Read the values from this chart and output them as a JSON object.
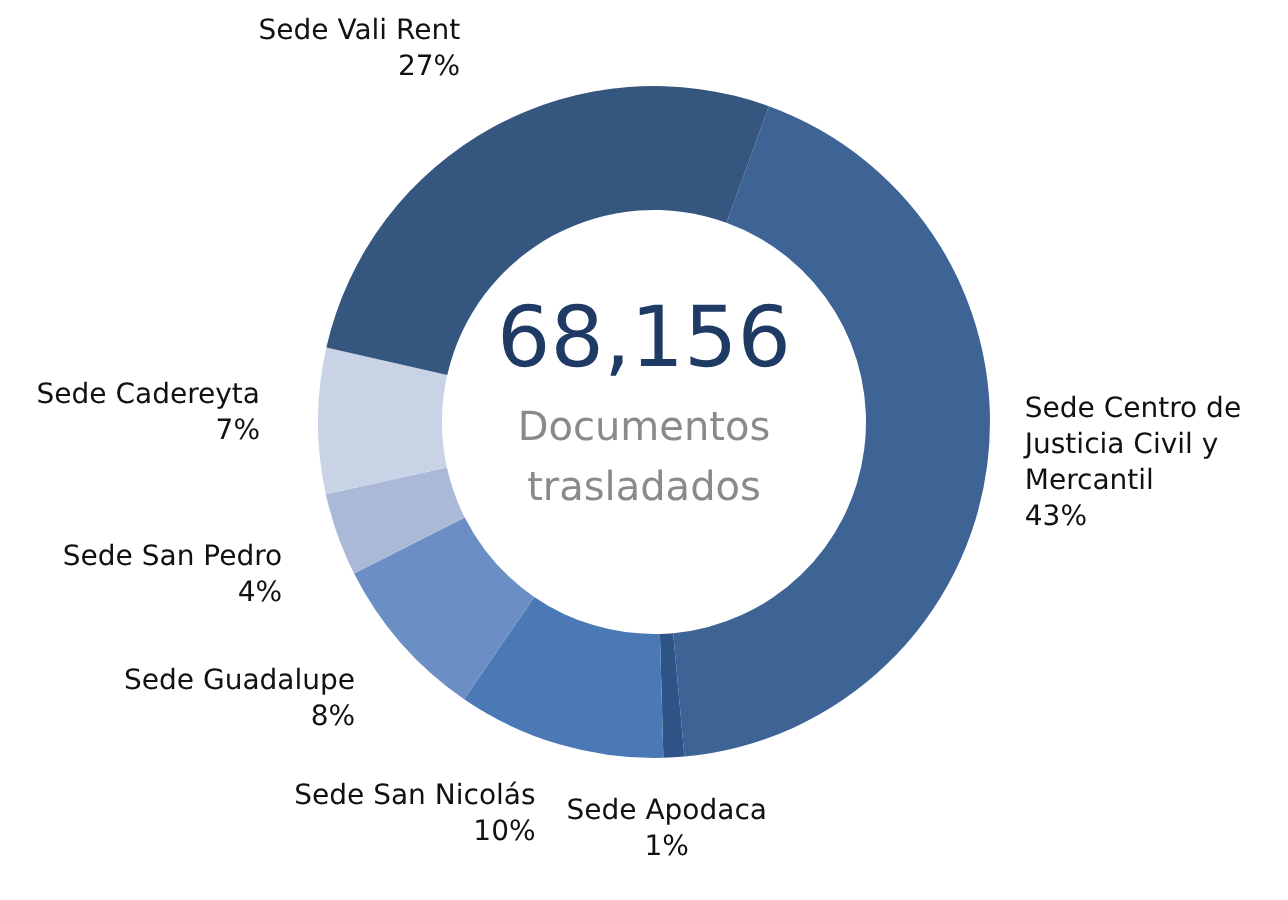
{
  "chart_data": {
    "type": "donut",
    "title": "68,156",
    "subtitle": "Documentos trasladados",
    "categories": [
      "Sede Centro de Justicia Civil y Mercantil",
      "Sede Apodaca",
      "Sede San Nicolás",
      "Sede Guadalupe",
      "Sede San Pedro",
      "Sede Cadereyta",
      "Sede Vali Rent"
    ],
    "values": [
      43,
      1,
      10,
      8,
      4,
      7,
      27
    ],
    "colors": [
      "#3e6496",
      "#2f5588",
      "#4a79b5",
      "#6b8fc4",
      "#aab9d8",
      "#c9d3e6",
      "#34567f"
    ],
    "value_labels": [
      "43%",
      "1%",
      "10%",
      "8%",
      "4%",
      "7%",
      "27%"
    ]
  }
}
